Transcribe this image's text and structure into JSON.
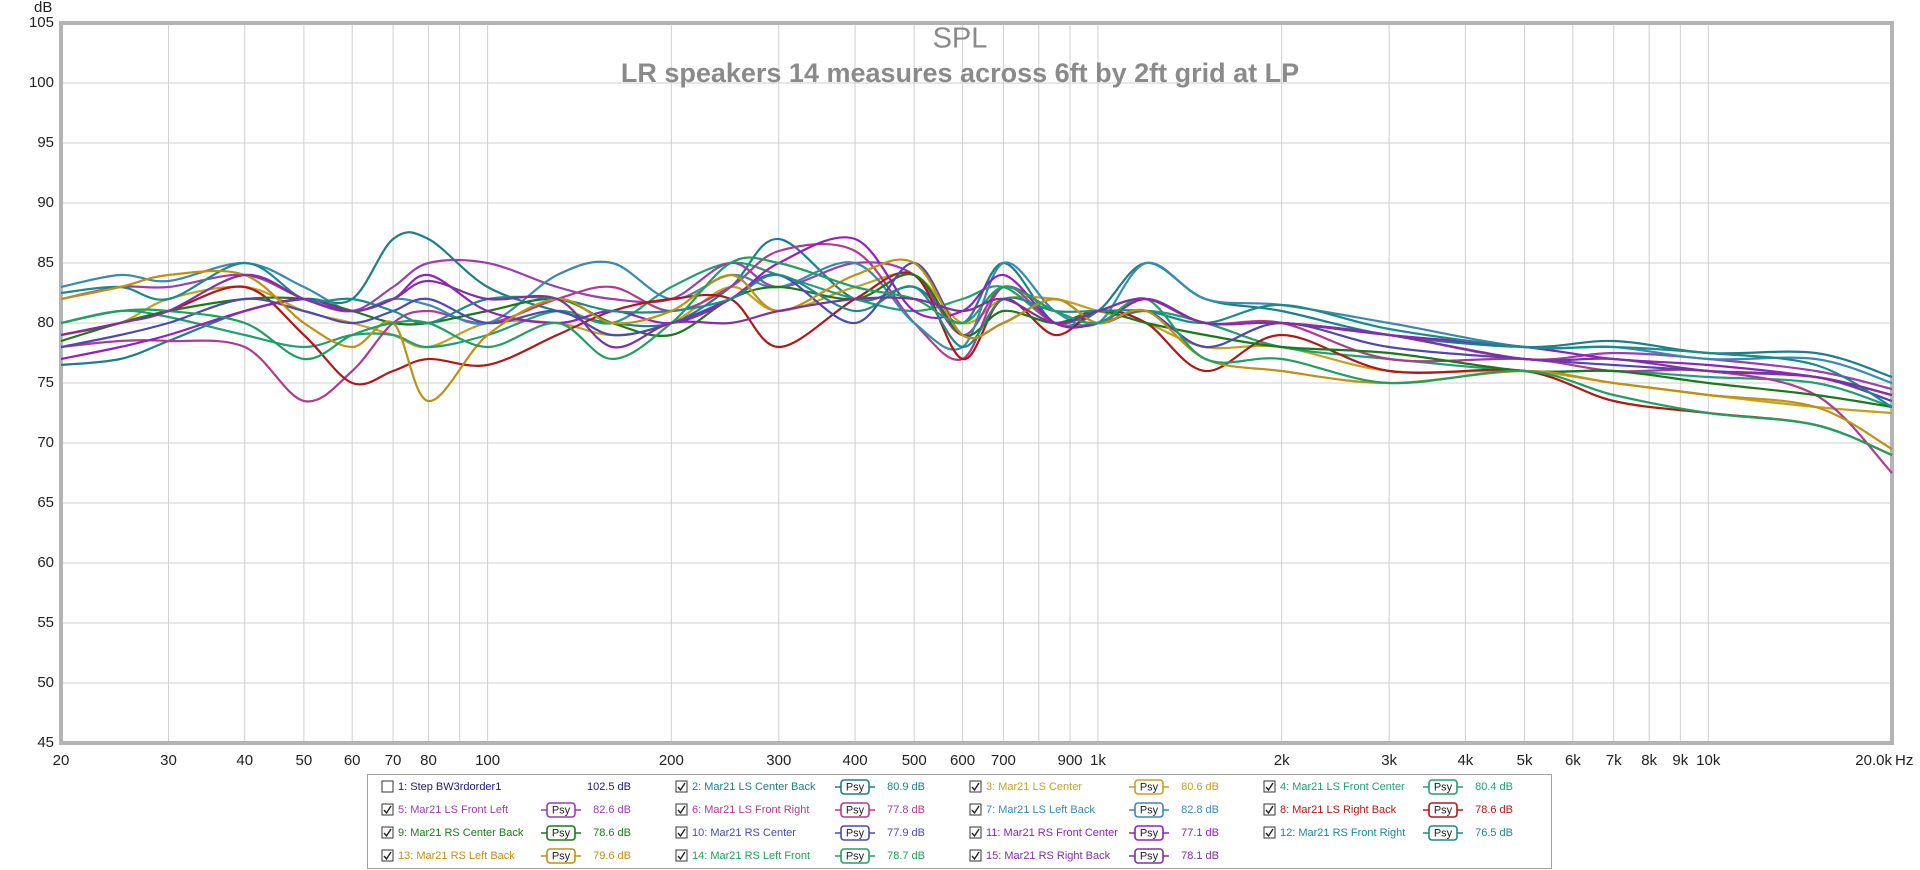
{
  "chart_data": {
    "type": "line",
    "title": "SPL",
    "subtitle": "LR speakers 14 measures across 6ft by 2ft grid at LP",
    "ylabel": "dB",
    "xlabel": "Hz",
    "log_x": true,
    "grid": true,
    "xlim": [
      20,
      20000
    ],
    "ylim": [
      45,
      105
    ],
    "yticks": [
      45,
      50,
      55,
      60,
      65,
      70,
      75,
      80,
      85,
      90,
      95,
      100,
      105
    ],
    "xticks": [
      20,
      30,
      40,
      50,
      60,
      70,
      80,
      {
        "value": 90,
        "label": null
      },
      100,
      200,
      300,
      400,
      500,
      600,
      700,
      {
        "value": 800,
        "label": null
      },
      900,
      {
        "value": 1000,
        "label": "1k"
      },
      {
        "value": 2000,
        "label": "2k"
      },
      {
        "value": 3000,
        "label": "3k"
      },
      {
        "value": 4000,
        "label": "4k"
      },
      {
        "value": 5000,
        "label": "5k"
      },
      {
        "value": 6000,
        "label": "6k"
      },
      {
        "value": 7000,
        "label": "7k"
      },
      {
        "value": 8000,
        "label": "8k"
      },
      {
        "value": 9000,
        "label": "9k"
      },
      {
        "value": 10000,
        "label": "10k"
      },
      {
        "value": 20000,
        "label": "20.0k"
      }
    ],
    "psy_label": "Psy",
    "x": [
      20,
      25,
      30,
      40,
      50,
      60,
      70,
      80,
      100,
      130,
      160,
      200,
      250,
      300,
      400,
      500,
      600,
      700,
      850,
      1000,
      1200,
      1500,
      2000,
      3000,
      5000,
      7000,
      10000,
      15000,
      20000
    ],
    "series": [
      {
        "name": "1: Step BW3rdorder1",
        "color": "#1a1a70",
        "checked": false,
        "level": "102.5 dB"
      },
      {
        "name": "2: Mar21 LS Center Back",
        "color": "#1a7f8a",
        "checked": true,
        "level": "80.9 dB",
        "values": [
          76.5,
          77,
          78.5,
          81,
          82,
          82,
          87,
          87,
          83,
          81,
          80,
          80,
          83,
          87,
          82,
          83,
          80,
          85,
          80,
          81,
          85,
          82,
          81,
          79,
          78,
          78.5,
          77.5,
          77.5,
          75.5
        ]
      },
      {
        "name": "3: Mar21 LS Center",
        "color": "#c8a020",
        "checked": true,
        "level": "80.6 dB",
        "values": [
          79,
          80,
          82,
          83,
          81,
          80,
          79,
          78,
          80,
          80,
          79,
          80,
          83,
          81,
          83,
          84,
          80,
          82,
          82,
          81,
          80,
          78,
          78,
          76,
          76,
          75,
          74,
          73,
          72.5
        ]
      },
      {
        "name": "4: Mar21 LS Front Center",
        "color": "#20a070",
        "checked": true,
        "level": "80.4 dB",
        "values": [
          80,
          81,
          80.5,
          79,
          78,
          79,
          79,
          78,
          79,
          81,
          80,
          83,
          85,
          84,
          82,
          81,
          82,
          83,
          80,
          80,
          81,
          80,
          78,
          77,
          76,
          76,
          75.5,
          75,
          73
        ]
      },
      {
        "name": "5: Mar21 LS Front Left",
        "color": "#9a3fb0",
        "checked": true,
        "level": "82.6 dB",
        "values": [
          82,
          83,
          83,
          84,
          82,
          81,
          83,
          85,
          85,
          83,
          82,
          82,
          85,
          83,
          85,
          84,
          79,
          83,
          81,
          80,
          82,
          80,
          80,
          79,
          77,
          77.5,
          77,
          76,
          74.5
        ]
      },
      {
        "name": "6: Mar21 LS Front Right",
        "color": "#b03a90",
        "checked": true,
        "level": "77.8 dB",
        "values": [
          78,
          78.5,
          78.5,
          78,
          73.5,
          76,
          80,
          81,
          80,
          82,
          83,
          81,
          83,
          86,
          86,
          80,
          77,
          83,
          80,
          81,
          82,
          80,
          80,
          77,
          77,
          76,
          76,
          74,
          67.5
        ]
      },
      {
        "name": "7: Mar21 LS Left Back",
        "color": "#3a8ab0",
        "checked": true,
        "level": "82.8 dB",
        "values": [
          83,
          84,
          83.5,
          85,
          83,
          81,
          82,
          81.5,
          80,
          84,
          85,
          82,
          84,
          83,
          85,
          80,
          78,
          85,
          81,
          80,
          85,
          82,
          81.5,
          80,
          78,
          78,
          77,
          77,
          75
        ]
      },
      {
        "name": "8: Mar21 LS Right Back",
        "color": "#b01818",
        "checked": true,
        "level": "78.6 dB",
        "values": [
          79,
          80,
          81,
          83,
          79,
          75,
          76,
          77,
          76.5,
          79,
          81,
          82,
          82,
          78,
          82,
          84,
          77,
          82,
          79,
          81,
          80,
          76,
          79,
          76,
          76,
          73.5,
          72.5,
          71.5,
          69
        ]
      },
      {
        "name": "9: Mar21 RS Center Back",
        "color": "#1a7a1a",
        "checked": true,
        "level": "78.6 dB",
        "values": [
          78.5,
          80,
          81,
          82,
          82,
          81,
          80,
          80,
          81,
          82,
          80,
          79,
          82,
          83,
          82,
          84,
          79,
          81,
          80,
          81,
          80,
          79,
          78,
          77.5,
          76,
          76,
          75,
          74,
          73
        ]
      },
      {
        "name": "10: Mar21 RS Center",
        "color": "#4a4ab0",
        "checked": true,
        "level": "77.9 dB",
        "values": [
          78,
          79,
          80,
          82,
          81,
          80,
          81,
          82,
          80,
          81,
          79,
          80,
          82,
          84,
          80,
          85,
          79,
          80,
          82,
          80,
          81,
          78,
          80,
          78,
          77,
          76.5,
          76,
          75.5,
          73.5
        ]
      },
      {
        "name": "11: Mar21 RS Front Center",
        "color": "#9020c0",
        "checked": true,
        "level": "77.1 dB",
        "values": [
          77,
          78,
          79,
          81,
          82,
          81,
          82,
          84,
          81,
          80,
          81,
          80,
          82,
          85,
          87,
          81,
          81,
          84,
          80,
          80,
          82,
          80,
          80,
          79,
          78,
          77,
          76.5,
          75.5,
          74
        ]
      },
      {
        "name": "12: Mar21 RS Front Right",
        "color": "#1a8a8a",
        "checked": true,
        "level": "76.5 dB",
        "values": [
          82.5,
          83,
          82,
          85,
          82,
          82,
          81,
          80,
          82,
          82,
          81,
          81,
          82,
          84,
          81,
          83,
          78,
          82,
          81,
          81,
          81,
          80,
          81.5,
          79.5,
          78,
          78,
          77.5,
          76.5,
          73
        ]
      },
      {
        "name": "13: Mar21 RS Left Back",
        "color": "#c09010",
        "checked": true,
        "level": "79.6 dB",
        "values": [
          82,
          83,
          84,
          84,
          80,
          78,
          80,
          73.5,
          79,
          82,
          80,
          81,
          84,
          81,
          84,
          85,
          79,
          80,
          82,
          80,
          81,
          77,
          76,
          75,
          76,
          75,
          74,
          73,
          69.5
        ]
      },
      {
        "name": "14: Mar21 RS Left Front",
        "color": "#20a060",
        "checked": true,
        "level": "78.7 dB",
        "values": [
          80,
          81,
          81,
          80,
          77,
          79,
          80,
          80,
          78,
          80,
          77,
          80,
          85,
          85,
          83,
          82,
          80,
          83,
          81,
          80,
          82,
          77,
          77,
          75,
          76,
          74,
          72.5,
          71.5,
          69
        ]
      },
      {
        "name": "15: Mar21 RS Right Back",
        "color": "#8030a0",
        "checked": true,
        "level": "78.1 dB",
        "values": [
          79,
          80,
          81,
          84,
          82,
          81,
          82,
          83.5,
          82,
          82,
          78,
          80,
          80,
          81,
          82,
          82,
          81,
          82,
          80,
          81,
          82,
          80,
          80,
          79,
          77,
          77,
          76,
          75.5,
          74
        ]
      }
    ]
  }
}
